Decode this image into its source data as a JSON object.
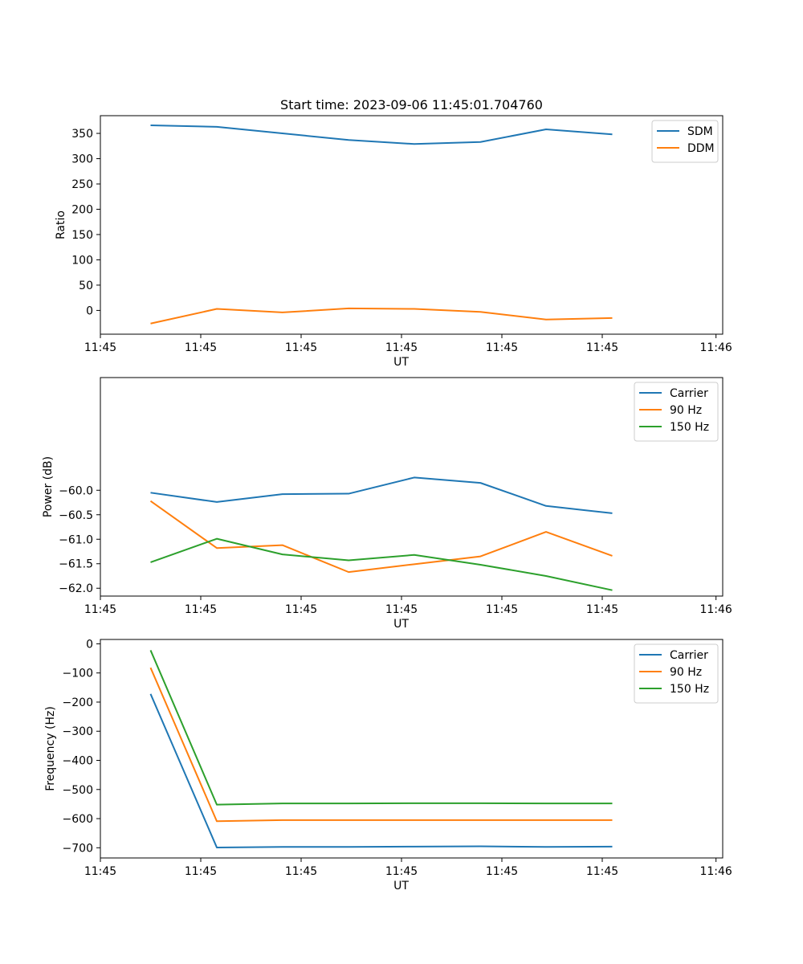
{
  "figure": {
    "title": "Start time: 2023-09-06 11:45:01.704760"
  },
  "chart_data": [
    {
      "type": "line",
      "title": "Start time: 2023-09-06 11:45:01.704760",
      "xlabel": "UT",
      "ylabel": "Ratio",
      "xlim": [
        0,
        9.3
      ],
      "ylim": [
        -47,
        385
      ],
      "xticks": [
        0,
        1.5,
        3,
        4.5,
        6,
        7.5,
        9.2
      ],
      "xtick_labels": [
        "11:45",
        "11:45",
        "11:45",
        "11:45",
        "11:45",
        "11:45",
        "11:46"
      ],
      "yticks": [
        0,
        50,
        100,
        150,
        200,
        250,
        300,
        350
      ],
      "ytick_labels": [
        "0",
        "50",
        "100",
        "150",
        "200",
        "250",
        "300",
        "350"
      ],
      "x": [
        0.75,
        1.74,
        2.72,
        3.71,
        4.69,
        5.68,
        6.66,
        7.65
      ],
      "series": [
        {
          "name": "SDM",
          "color": "#1f77b4",
          "values": [
            366,
            363,
            350,
            337,
            329,
            333,
            358,
            348
          ]
        },
        {
          "name": "DDM",
          "color": "#ff7f0e",
          "values": [
            -26,
            3,
            -4,
            4,
            3,
            -3,
            -18,
            -15
          ]
        }
      ],
      "legend": "top-right",
      "grid": false
    },
    {
      "type": "line",
      "title": "",
      "xlabel": "UT",
      "ylabel": "Power (dB)",
      "xlim": [
        0,
        9.3
      ],
      "ylim": [
        -62.16,
        -57.7
      ],
      "xticks": [
        0,
        1.5,
        3,
        4.5,
        6,
        7.5,
        9.2
      ],
      "xtick_labels": [
        "11:45",
        "11:45",
        "11:45",
        "11:45",
        "11:45",
        "11:45",
        "11:46"
      ],
      "yticks": [
        -62.0,
        -61.5,
        -61.0,
        -60.5,
        -60.0
      ],
      "ytick_labels": [
        "−62.0",
        "−61.5",
        "−61.0",
        "−60.5",
        "−60.0"
      ],
      "x": [
        0.75,
        1.74,
        2.72,
        3.71,
        4.69,
        5.68,
        6.66,
        7.65
      ],
      "series": [
        {
          "name": "Carrier",
          "color": "#1f77b4",
          "values": [
            -60.05,
            -60.24,
            -60.08,
            -60.07,
            -59.74,
            -59.85,
            -60.32,
            -60.47
          ]
        },
        {
          "name": "90 Hz",
          "color": "#ff7f0e",
          "values": [
            -60.22,
            -61.18,
            -61.12,
            -61.67,
            -61.51,
            -61.35,
            -60.85,
            -61.34
          ]
        },
        {
          "name": "150 Hz",
          "color": "#2ca02c",
          "values": [
            -61.47,
            -60.99,
            -61.31,
            -61.43,
            -61.32,
            -61.52,
            -61.75,
            -62.04
          ]
        }
      ],
      "legend": "top-right",
      "grid": false
    },
    {
      "type": "line",
      "title": "",
      "xlabel": "UT",
      "ylabel": "Frequency (Hz)",
      "xlim": [
        0,
        9.3
      ],
      "ylim": [
        -735,
        15
      ],
      "xticks": [
        0,
        1.5,
        3,
        4.5,
        6,
        7.5,
        9.2
      ],
      "xtick_labels": [
        "11:45",
        "11:45",
        "11:45",
        "11:45",
        "11:45",
        "11:45",
        "11:46"
      ],
      "yticks": [
        -700,
        -600,
        -500,
        -400,
        -300,
        -200,
        -100,
        0
      ],
      "ytick_labels": [
        "−700",
        "−600",
        "−500",
        "−400",
        "−300",
        "−200",
        "−100",
        "0"
      ],
      "x": [
        0.75,
        1.74,
        2.72,
        3.71,
        4.69,
        5.68,
        6.66,
        7.65
      ],
      "series": [
        {
          "name": "Carrier",
          "color": "#1f77b4",
          "values": [
            -172,
            -699,
            -697,
            -697,
            -696,
            -695,
            -697,
            -696
          ]
        },
        {
          "name": "90 Hz",
          "color": "#ff7f0e",
          "values": [
            -82,
            -609,
            -605,
            -605,
            -605,
            -605,
            -605,
            -605
          ]
        },
        {
          "name": "150 Hz",
          "color": "#2ca02c",
          "values": [
            -22,
            -552,
            -548,
            -548,
            -547,
            -547,
            -548,
            -548
          ]
        }
      ],
      "legend": "top-right",
      "grid": false
    }
  ]
}
